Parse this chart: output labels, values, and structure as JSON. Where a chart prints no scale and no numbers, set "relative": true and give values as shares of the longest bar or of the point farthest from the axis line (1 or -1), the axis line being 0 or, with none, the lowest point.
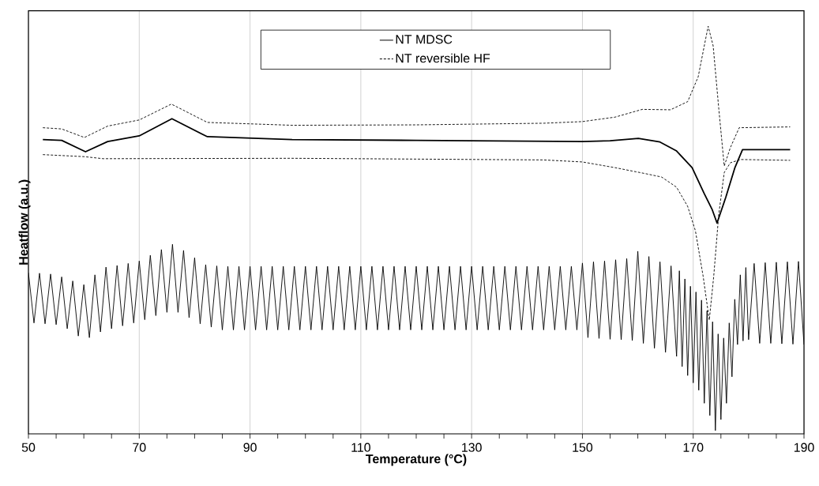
{
  "chart_data": {
    "type": "line",
    "xlabel": "Temperature (°C)",
    "ylabel": "Heatflow (a.u.)",
    "relative": true,
    "grid": "x",
    "legend": "top",
    "xlim": [
      50,
      190
    ],
    "xticks": [
      50,
      {
        "value": 55,
        "label": null
      },
      {
        "value": 60,
        "label": null
      },
      {
        "value": 65,
        "label": null
      },
      70,
      {
        "value": 75,
        "label": null
      },
      {
        "value": 80,
        "label": null
      },
      {
        "value": 85,
        "label": null
      },
      90,
      {
        "value": 95,
        "label": null
      },
      {
        "value": 100,
        "label": null
      },
      {
        "value": 105,
        "label": null
      },
      110,
      {
        "value": 115,
        "label": null
      },
      {
        "value": 120,
        "label": null
      },
      {
        "value": 125,
        "label": null
      },
      130,
      {
        "value": 135,
        "label": null
      },
      {
        "value": 140,
        "label": null
      },
      {
        "value": 145,
        "label": null
      },
      150,
      {
        "value": 155,
        "label": null
      },
      {
        "value": 160,
        "label": null
      },
      {
        "value": 165,
        "label": null
      },
      170,
      {
        "value": 175,
        "label": null
      },
      {
        "value": 180,
        "label": null
      },
      {
        "value": 185,
        "label": null
      },
      190
    ],
    "series": [
      {
        "name": "NT MDSC",
        "color": "#000000",
        "line_style": "solid",
        "x": [
          52.6,
          56,
          60.3,
          64.3,
          70,
          75.9,
          82.3,
          97.6,
          120,
          150,
          155,
          160.1,
          164,
          167,
          169.8,
          172,
          173.4,
          174.3,
          175.9,
          177.5,
          178.9,
          180,
          187.5
        ],
        "values": [
          0.722,
          0.72,
          0.692,
          0.717,
          0.731,
          0.773,
          0.729,
          0.722,
          0.72,
          0.717,
          0.719,
          0.725,
          0.716,
          0.694,
          0.653,
          0.589,
          0.551,
          0.517,
          0.581,
          0.652,
          0.697,
          0.697,
          0.697
        ]
      },
      {
        "name": "NT reversible HF",
        "color": "#000000",
        "line_style": "dashed",
        "x": [
          52.6,
          56,
          60.1,
          64.3,
          70,
          75.8,
          82.3,
          97.6,
          120,
          143,
          150,
          155.9,
          160.8,
          165.9,
          169,
          170.9,
          172,
          172.7,
          173.6,
          174.6,
          175.6,
          176.7,
          178.3,
          187.5
        ],
        "values": [
          0.751,
          0.748,
          0.727,
          0.755,
          0.77,
          0.809,
          0.764,
          0.757,
          0.758,
          0.762,
          0.766,
          0.777,
          0.796,
          0.795,
          0.815,
          0.876,
          0.952,
          1.0,
          0.952,
          0.8,
          0.657,
          0.702,
          0.751,
          0.753
        ]
      },
      {
        "color": "#000000",
        "line_style": "dashed",
        "x": [
          52.6,
          60.1,
          63.5,
          97.6,
          143,
          150,
          155.9,
          161.5,
          164.3,
          167,
          169,
          170.4,
          171.8,
          172.9,
          173.7,
          174.6,
          175.6,
          176.7,
          178.6,
          187.5
        ],
        "values": [
          0.685,
          0.68,
          0.675,
          0.676,
          0.672,
          0.667,
          0.653,
          0.638,
          0.63,
          0.605,
          0.558,
          0.498,
          0.386,
          0.279,
          0.386,
          0.537,
          0.641,
          0.665,
          0.673,
          0.671
        ]
      },
      {
        "color": "#000000",
        "line_style": "solid",
        "x": [
          50,
          51,
          52,
          53,
          54,
          55,
          56,
          57,
          58,
          59,
          60,
          61,
          62,
          63,
          64,
          65,
          66,
          67,
          68,
          69,
          70,
          71,
          72,
          73,
          74,
          75,
          76,
          77,
          78,
          79,
          80,
          81,
          82,
          83,
          84,
          85,
          86,
          87,
          88,
          89,
          90,
          91,
          92,
          93,
          94,
          95,
          96,
          97,
          98,
          99,
          100,
          101,
          102,
          103,
          104,
          105,
          106,
          107,
          108,
          109,
          110,
          111,
          112,
          113,
          114,
          115,
          116,
          117,
          118,
          119,
          120,
          121,
          122,
          123,
          124,
          125,
          126,
          127,
          128,
          129,
          130,
          131,
          132,
          133,
          134,
          135,
          136,
          137,
          138,
          139,
          140,
          141,
          142,
          143,
          144,
          145,
          146,
          147,
          148,
          149,
          150,
          151,
          152,
          153,
          154,
          155,
          156,
          157,
          158,
          159,
          160,
          161,
          162,
          163,
          164,
          165,
          166,
          167,
          167.5,
          168,
          168.5,
          169,
          169.5,
          170,
          170.5,
          171,
          171.5,
          172,
          172.5,
          173,
          173.5,
          174,
          174.5,
          175,
          175.5,
          176,
          176.5,
          177,
          177.5,
          178,
          178.5,
          179,
          179.5,
          180,
          181,
          182,
          183,
          184,
          185,
          186,
          187,
          188,
          189,
          190
        ],
        "values": [
          0.395,
          0.272,
          0.394,
          0.27,
          0.392,
          0.268,
          0.385,
          0.258,
          0.375,
          0.24,
          0.366,
          0.236,
          0.39,
          0.25,
          0.409,
          0.258,
          0.413,
          0.265,
          0.418,
          0.272,
          0.424,
          0.28,
          0.438,
          0.29,
          0.452,
          0.298,
          0.465,
          0.298,
          0.45,
          0.285,
          0.432,
          0.27,
          0.415,
          0.262,
          0.412,
          0.255,
          0.411,
          0.255,
          0.411,
          0.255,
          0.411,
          0.255,
          0.411,
          0.255,
          0.411,
          0.255,
          0.411,
          0.255,
          0.411,
          0.255,
          0.411,
          0.255,
          0.411,
          0.255,
          0.411,
          0.255,
          0.411,
          0.255,
          0.411,
          0.255,
          0.411,
          0.255,
          0.411,
          0.255,
          0.411,
          0.255,
          0.411,
          0.255,
          0.411,
          0.255,
          0.411,
          0.255,
          0.411,
          0.255,
          0.411,
          0.255,
          0.411,
          0.255,
          0.411,
          0.255,
          0.411,
          0.255,
          0.411,
          0.255,
          0.411,
          0.255,
          0.411,
          0.255,
          0.411,
          0.255,
          0.411,
          0.255,
          0.411,
          0.255,
          0.411,
          0.255,
          0.411,
          0.255,
          0.411,
          0.255,
          0.419,
          0.236,
          0.422,
          0.234,
          0.424,
          0.232,
          0.427,
          0.231,
          0.43,
          0.229,
          0.448,
          0.222,
          0.435,
          0.21,
          0.422,
          0.2,
          0.412,
          0.19,
          0.4,
          0.165,
          0.38,
          0.143,
          0.362,
          0.125,
          0.348,
          0.107,
          0.328,
          0.075,
          0.302,
          0.045,
          0.275,
          0.008,
          0.245,
          0.035,
          0.235,
          0.075,
          0.272,
          0.14,
          0.33,
          0.219,
          0.39,
          0.228,
          0.408,
          0.231,
          0.418,
          0.222,
          0.42,
          0.222,
          0.421,
          0.221,
          0.422,
          0.22,
          0.423,
          0.219
        ]
      }
    ]
  }
}
